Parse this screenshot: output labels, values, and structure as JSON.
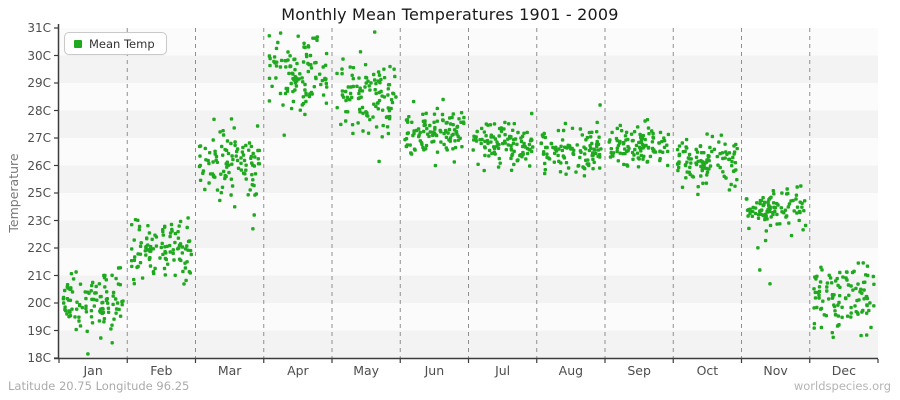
{
  "title": "Monthly Mean Temperatures 1901 - 2009",
  "legend": {
    "label": "Mean Temp"
  },
  "y_axis": {
    "title": "Temperature",
    "tick_labels": [
      "18C",
      "19C",
      "20C",
      "21C",
      "22C",
      "23C",
      "25C",
      "26C",
      "27C",
      "28C",
      "29C",
      "30C",
      "31C"
    ]
  },
  "x_axis": {
    "months": [
      "Jan",
      "Feb",
      "Mar",
      "Apr",
      "May",
      "Jun",
      "Jul",
      "Aug",
      "Sep",
      "Oct",
      "Nov",
      "Dec"
    ]
  },
  "footer": {
    "left": "Latitude 20.75 Longitude 96.25",
    "right": "worldspecies.org"
  },
  "colors": {
    "point": "#1fa91f",
    "band_light": "#fbfbfb",
    "band_dark": "#f3f3f3",
    "gridline": "#8f8f8f",
    "axis": "#3c3c3c",
    "tick": "#3c3c3c"
  },
  "chart_data": {
    "type": "scatter",
    "title": "Monthly Mean Temperatures 1901 - 2009",
    "xlabel": "",
    "ylabel": "Temperature",
    "x_categories": [
      "Jan",
      "Feb",
      "Mar",
      "Apr",
      "May",
      "Jun",
      "Jul",
      "Aug",
      "Sep",
      "Oct",
      "Nov",
      "Dec"
    ],
    "y_tick_labels_bottom_to_top": [
      "18C",
      "19C",
      "20C",
      "21C",
      "22C",
      "23C",
      "25C",
      "26C",
      "27C",
      "28C",
      "29C",
      "30C",
      "31C"
    ],
    "y_axis_note": "13 evenly spaced ticks; the 24C label is skipped between 23C and 25C",
    "legend_position": "top-left",
    "grid": "vertical dashed month separators; alternating horizontal shaded bands",
    "years_range": "1901 - 2009",
    "points_per_month": 109,
    "series": [
      {
        "name": "Mean Temp",
        "color": "#1fa91f",
        "monthly_distributions": [
          {
            "month": "Jan",
            "mean": 20.0,
            "std": 0.62,
            "min": 18.3,
            "max": 21.7,
            "outliers": [
              18.15
            ]
          },
          {
            "month": "Feb",
            "mean": 21.85,
            "std": 0.55,
            "min": 20.4,
            "max": 23.35,
            "outliers": []
          },
          {
            "month": "Mar",
            "mean": 26.1,
            "std": 0.65,
            "min": 24.4,
            "max": 28.0,
            "outliers": [
              22.7,
              23.4,
              24.0
            ]
          },
          {
            "month": "Apr",
            "mean": 29.25,
            "std": 0.7,
            "min": 27.5,
            "max": 31.0,
            "outliers": [
              27.1
            ]
          },
          {
            "month": "May",
            "mean": 28.5,
            "std": 0.65,
            "min": 26.9,
            "max": 30.5,
            "outliers": [
              26.15,
              30.85
            ]
          },
          {
            "month": "Jun",
            "mean": 27.2,
            "std": 0.45,
            "min": 25.95,
            "max": 28.5,
            "outliers": []
          },
          {
            "month": "Jul",
            "mean": 26.8,
            "std": 0.45,
            "min": 25.8,
            "max": 28.0,
            "outliers": []
          },
          {
            "month": "Aug",
            "mean": 26.5,
            "std": 0.42,
            "min": 25.6,
            "max": 27.7,
            "outliers": [
              28.2
            ]
          },
          {
            "month": "Sep",
            "mean": 26.7,
            "std": 0.42,
            "min": 25.85,
            "max": 27.9,
            "outliers": []
          },
          {
            "month": "Oct",
            "mean": 26.2,
            "std": 0.45,
            "min": 25.0,
            "max": 27.4,
            "outliers": [
              24.9
            ]
          },
          {
            "month": "Nov",
            "mean": 23.75,
            "std": 0.7,
            "min": 21.9,
            "max": 25.7,
            "outliers": [
              20.7,
              21.2
            ]
          },
          {
            "month": "Dec",
            "mean": 20.3,
            "std": 0.68,
            "min": 18.5,
            "max": 22.3,
            "outliers": []
          }
        ]
      }
    ]
  }
}
